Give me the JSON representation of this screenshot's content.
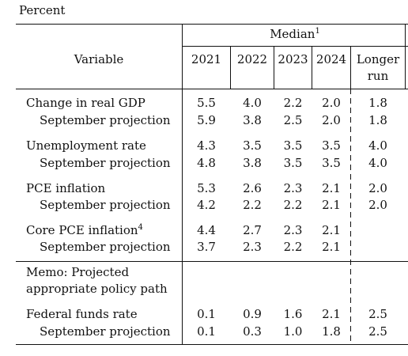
{
  "header": {
    "unit": "Percent",
    "variable": "Variable",
    "group": "Median",
    "group_note": "1",
    "columns": [
      "2021",
      "2022",
      "2023",
      "2024",
      "Longer run"
    ]
  },
  "rows": [
    {
      "label": "Change in real GDP",
      "values": [
        "5.5",
        "4.0",
        "2.2",
        "2.0",
        "1.8"
      ]
    },
    {
      "label": "September projection",
      "values": [
        "5.9",
        "3.8",
        "2.5",
        "2.0",
        "1.8"
      ]
    },
    {
      "label": "Unemployment rate",
      "values": [
        "4.3",
        "3.5",
        "3.5",
        "3.5",
        "4.0"
      ]
    },
    {
      "label": "September projection",
      "values": [
        "4.8",
        "3.8",
        "3.5",
        "3.5",
        "4.0"
      ]
    },
    {
      "label": "PCE inflation",
      "values": [
        "5.3",
        "2.6",
        "2.3",
        "2.1",
        "2.0"
      ]
    },
    {
      "label": "September projection",
      "values": [
        "4.2",
        "2.2",
        "2.2",
        "2.1",
        "2.0"
      ]
    },
    {
      "label": "Core PCE inflation",
      "note": "4",
      "values": [
        "4.4",
        "2.7",
        "2.3",
        "2.1"
      ]
    },
    {
      "label": "September projection",
      "values": [
        "3.7",
        "2.3",
        "2.2",
        "2.1"
      ]
    }
  ],
  "memo": "Memo: Projected appropriate policy path",
  "policy_rows": [
    {
      "label": "Federal funds rate",
      "values": [
        "0.1",
        "0.9",
        "1.6",
        "2.1",
        "2.5"
      ]
    },
    {
      "label": "September projection",
      "values": [
        "0.1",
        "0.3",
        "1.0",
        "1.8",
        "2.5"
      ]
    }
  ]
}
